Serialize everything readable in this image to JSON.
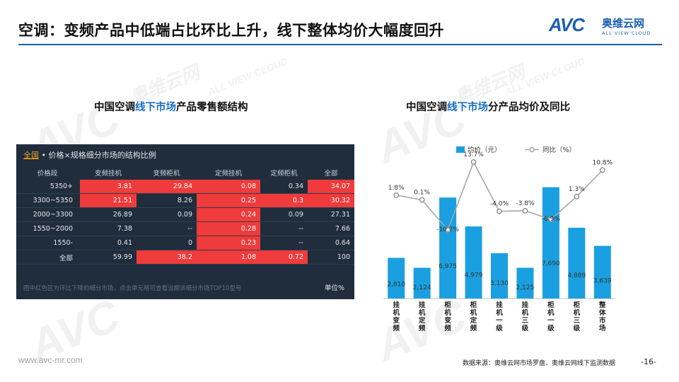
{
  "page": {
    "title": "空调：变频产品中低端占比环比上升，线下整体均价大幅度回升",
    "footer_url": "www.avc-mr.com",
    "footer_source": "数据来源：奥维云网市场罗盘、奥维云网线下监测数据",
    "page_number": "-16-"
  },
  "logo": {
    "mark": "AVC",
    "cn": "奥维云网",
    "en": "ALL VIEW CLOUD"
  },
  "watermark": {
    "mark": "AVC",
    "cn": "奥维云网",
    "en": "ALL VIEW CLOUD"
  },
  "left_panel": {
    "title_pre": "中国空调",
    "title_hl": "线下市场",
    "title_post": "产品零售额结构",
    "table_scope": "全国",
    "table_caption": " • 价格×规格细分市场的结构比例",
    "note": "图中红色区为环比下降的细分市场，点击单元格可查看当期该细分市场TOP10型号",
    "unit": "单位%",
    "columns": [
      "价格段",
      "变频挂机",
      "变频柜机",
      "定频挂机",
      "定频柜机",
      "全部"
    ],
    "rows": [
      {
        "label": "5350+",
        "cells": [
          "3.81",
          "29.84",
          "0.08",
          "0.34",
          "34.07"
        ],
        "red": [
          true,
          true,
          true,
          false,
          true
        ]
      },
      {
        "label": "3300~5350",
        "cells": [
          "21.51",
          "8.26",
          "0.25",
          "0.3",
          "30.32"
        ],
        "red": [
          true,
          false,
          true,
          true,
          true
        ]
      },
      {
        "label": "2000~3300",
        "cells": [
          "26.89",
          "0.09",
          "0.24",
          "0.09",
          "27.31"
        ],
        "red": [
          false,
          false,
          true,
          false,
          false
        ]
      },
      {
        "label": "1550~2000",
        "cells": [
          "7.38",
          "--",
          "0.28",
          "--",
          "7.66"
        ],
        "red": [
          false,
          false,
          true,
          false,
          false
        ]
      },
      {
        "label": "1550-",
        "cells": [
          "0.41",
          "0",
          "0.23",
          "--",
          "0.64"
        ],
        "red": [
          false,
          false,
          true,
          false,
          false
        ]
      },
      {
        "label": "全部",
        "cells": [
          "59.99",
          "38.2",
          "1.08",
          "0.72",
          "100"
        ],
        "red": [
          false,
          true,
          true,
          true,
          false
        ]
      }
    ],
    "colors": {
      "red": "#ef3b3b",
      "bg": "#1f2d3d"
    }
  },
  "right_panel": {
    "title_pre": "中国空调",
    "title_hl": "线下市场",
    "title_post": "分产品均价及同比"
  },
  "chart_data": {
    "type": "bar",
    "title": "中国空调线下市场分产品均价及同比",
    "categories": [
      "挂机变频",
      "挂机定频",
      "柜机变频",
      "柜机定频",
      "挂机一级",
      "挂机三级",
      "柜机一级",
      "柜机三级",
      "整体市场"
    ],
    "series": [
      {
        "name": "均价（元）",
        "type": "bar",
        "values": [
          2810,
          2124,
          6975,
          4979,
          3130,
          2125,
          7690,
          4889,
          3639
        ],
        "labels": [
          "2,810",
          "2,124",
          "6,975",
          "4,979",
          "3,130",
          "2,125",
          "7,690",
          "4,889",
          "3,639"
        ],
        "color": "#1aa0e0"
      },
      {
        "name": "同比（%）",
        "type": "line",
        "values": [
          1.8,
          0.1,
          -10.7,
          13.7,
          -4.0,
          -3.8,
          -6.9,
          1.3,
          10.8
        ],
        "labels": [
          "1.8%",
          "0.1%",
          "-10.7%",
          "13.7%",
          "-4.0%",
          "-3.8%",
          "-6.9%",
          "1.3%",
          "10.8%"
        ],
        "color": "#a6a6a6"
      }
    ],
    "legend_position": "top",
    "bar_ylim": [
      0,
      8500
    ],
    "line_ylim": [
      -16,
      17
    ]
  }
}
